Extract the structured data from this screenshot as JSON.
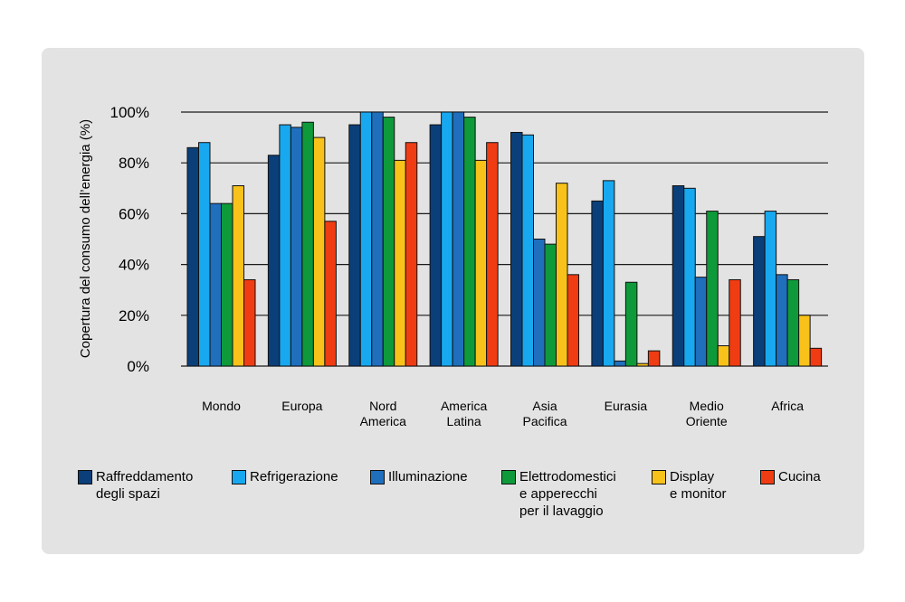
{
  "chart_data": {
    "type": "bar",
    "title": "",
    "xlabel": "",
    "ylabel": "Copertura del consumo dell’energia (%)",
    "ylim": [
      0,
      100
    ],
    "yticks": [
      0,
      20,
      40,
      60,
      80,
      100
    ],
    "ytick_labels": [
      "0%",
      "20%",
      "40%",
      "60%",
      "80%",
      "100%"
    ],
    "grid": true,
    "legend_position": "bottom",
    "categories": [
      "Mondo",
      "Europa",
      "Nord\nAmerica",
      "America\nLatina",
      "Asia\nPacifica",
      "Eurasia",
      "Medio\nOriente",
      "Africa"
    ],
    "series": [
      {
        "name": "Raffreddamento\ndegli spazi",
        "color": "#0a3f7a",
        "values": [
          86,
          83,
          95,
          95,
          92,
          65,
          71,
          51
        ]
      },
      {
        "name": "Refrigerazione",
        "color": "#18a8ef",
        "values": [
          88,
          95,
          100,
          100,
          91,
          73,
          70,
          61
        ]
      },
      {
        "name": "Illuminazione",
        "color": "#1f6fbd",
        "values": [
          64,
          94,
          100,
          100,
          50,
          2,
          35,
          36
        ]
      },
      {
        "name": "Elettrodomestici\ne apperecchi\nper il lavaggio",
        "color": "#0e9a3a",
        "values": [
          64,
          96,
          98,
          98,
          48,
          33,
          61,
          34
        ]
      },
      {
        "name": "Display\ne monitor",
        "color": "#f8c21a",
        "values": [
          71,
          90,
          81,
          81,
          72,
          1,
          8,
          20
        ]
      },
      {
        "name": "Cucina",
        "color": "#f03c12",
        "values": [
          34,
          57,
          88,
          88,
          36,
          6,
          34,
          7
        ]
      }
    ]
  }
}
